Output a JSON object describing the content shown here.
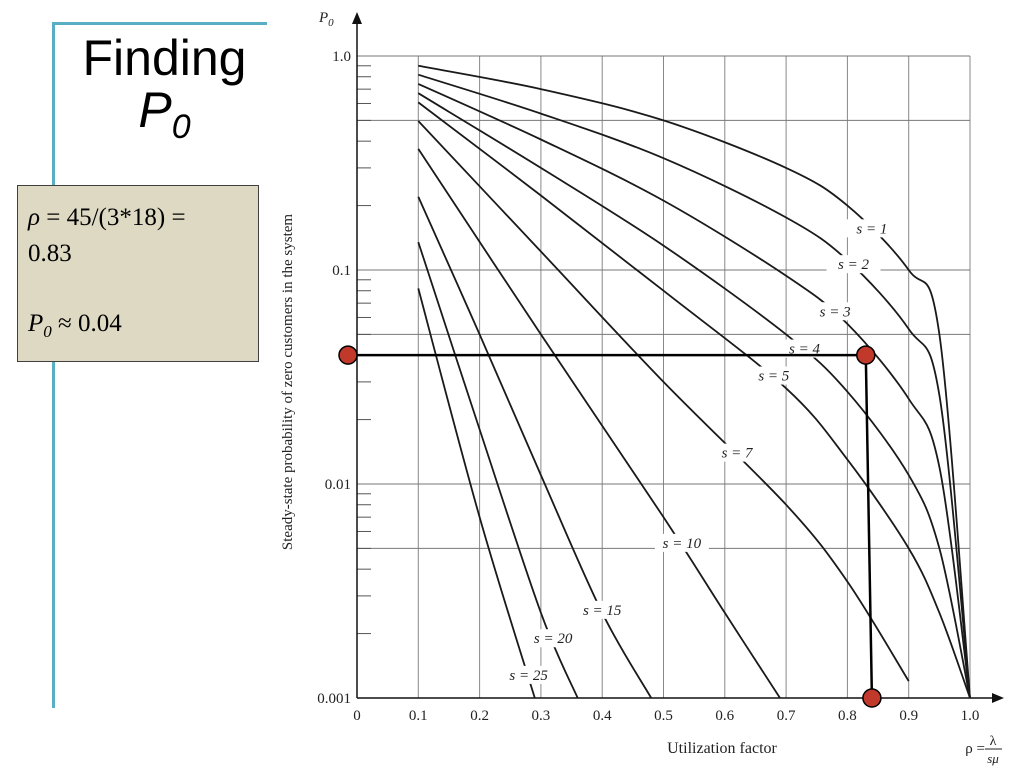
{
  "slide": {
    "title_line1": "Finding",
    "title_symbol": "P",
    "title_subscript": "0",
    "note": {
      "rho_symbol": "ρ",
      "line1_text": " = 45/(3*18) =",
      "line2_text": "0.83",
      "p_symbol": "P",
      "p_subscript": "0",
      "line3_text": " ≈ 0.04"
    }
  },
  "chart_data": {
    "type": "line",
    "y_axis_symbol": "P0",
    "ylabel": "Steady-state probability of zero customers in the system",
    "xlabel": "Utilization factor",
    "x_axis_symbol": "ρ = λ/sμ",
    "y_scale": "log",
    "ylim": [
      0.001,
      1.0
    ],
    "xlim": [
      0,
      1.0
    ],
    "x_ticks": [
      "0",
      "0.1",
      "0.2",
      "0.3",
      "0.4",
      "0.5",
      "0.6",
      "0.7",
      "0.8",
      "0.9",
      "1.0"
    ],
    "y_ticks": [
      "0.001",
      "0.01",
      "0.1",
      "1.0"
    ],
    "grid": true,
    "series": [
      {
        "name": "s = 1",
        "x": [
          0.1,
          0.3,
          0.5,
          0.7,
          0.8,
          0.9,
          0.95,
          1.0
        ],
        "values": [
          0.9,
          0.7,
          0.5,
          0.3,
          0.2,
          0.1,
          0.05,
          0.001
        ]
      },
      {
        "name": "s = 2",
        "x": [
          0.1,
          0.3,
          0.5,
          0.7,
          0.8,
          0.9,
          0.95,
          1.0
        ],
        "values": [
          0.818,
          0.538,
          0.333,
          0.176,
          0.111,
          0.053,
          0.026,
          0.001
        ]
      },
      {
        "name": "s = 3",
        "x": [
          0.1,
          0.3,
          0.5,
          0.7,
          0.8,
          0.9,
          0.95,
          1.0
        ],
        "values": [
          0.741,
          0.407,
          0.211,
          0.094,
          0.056,
          0.025,
          0.012,
          0.001
        ]
      },
      {
        "name": "s = 4",
        "x": [
          0.1,
          0.3,
          0.5,
          0.7,
          0.8,
          0.9,
          0.95,
          1.0
        ],
        "values": [
          0.67,
          0.3,
          0.13,
          0.05,
          0.027,
          0.011,
          0.005,
          0.001
        ]
      },
      {
        "name": "s = 5",
        "x": [
          0.1,
          0.3,
          0.5,
          0.7,
          0.8,
          0.9,
          0.95,
          1.0
        ],
        "values": [
          0.607,
          0.223,
          0.08,
          0.028,
          0.013,
          0.005,
          0.0025,
          0.001
        ]
      },
      {
        "name": "s = 7",
        "x": [
          0.1,
          0.3,
          0.5,
          0.7,
          0.8,
          0.9
        ],
        "values": [
          0.497,
          0.122,
          0.03,
          0.008,
          0.0035,
          0.0012
        ]
      },
      {
        "name": "s = 10",
        "x": [
          0.1,
          0.3,
          0.5,
          0.6,
          0.69
        ],
        "values": [
          0.368,
          0.05,
          0.007,
          0.0025,
          0.001
        ]
      },
      {
        "name": "s = 15",
        "x": [
          0.1,
          0.2,
          0.3,
          0.4,
          0.48
        ],
        "values": [
          0.22,
          0.05,
          0.011,
          0.0025,
          0.001
        ]
      },
      {
        "name": "s = 20",
        "x": [
          0.1,
          0.2,
          0.3,
          0.36
        ],
        "values": [
          0.135,
          0.018,
          0.0025,
          0.001
        ]
      },
      {
        "name": "s = 25",
        "x": [
          0.1,
          0.2,
          0.29
        ],
        "values": [
          0.082,
          0.007,
          0.001
        ]
      }
    ],
    "annotation": {
      "rho": 0.83,
      "p0": 0.04,
      "marker_color": "#c0392b"
    }
  }
}
